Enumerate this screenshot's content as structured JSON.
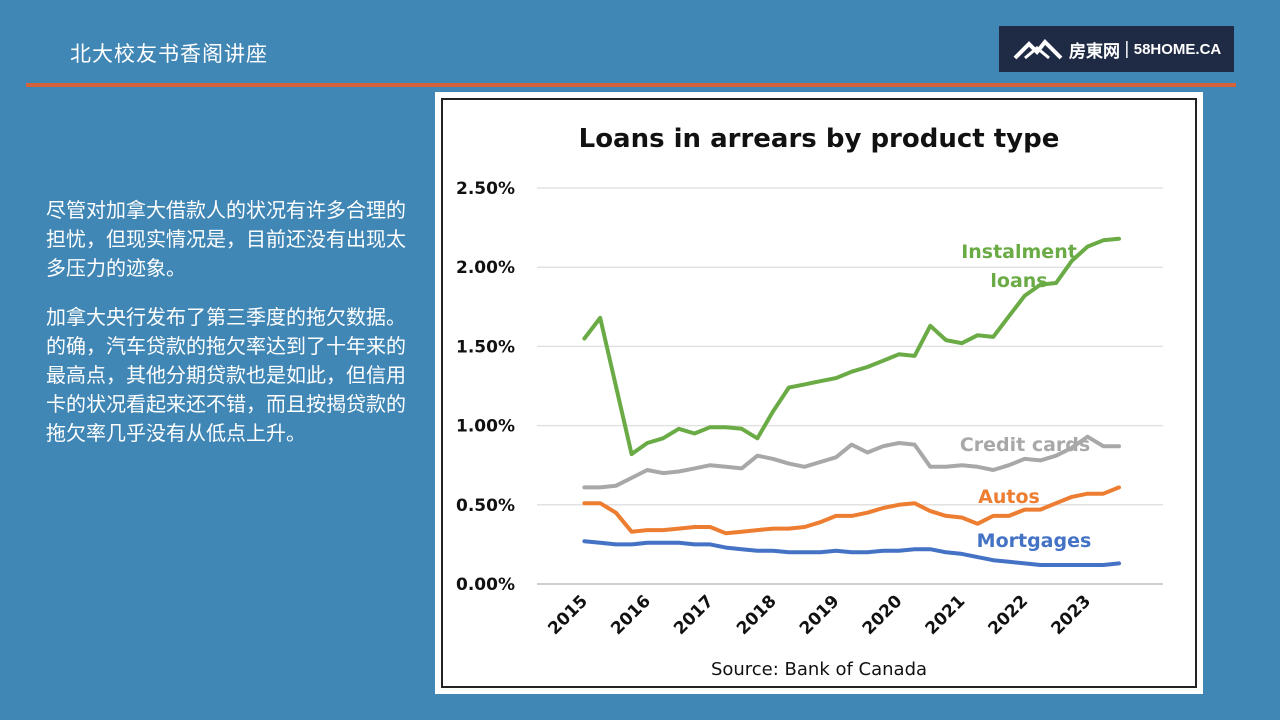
{
  "header": {
    "title": "北大校友书香阁讲座",
    "accent_color": "#d4623b"
  },
  "logo": {
    "cn": "房東网",
    "sep": "|",
    "en": "58HOME.CA",
    "icon": "house-logo-icon"
  },
  "body": {
    "paragraphs": [
      "尽管对加拿大借款人的状况有许多合理的担忧，但现实情况是，目前还没有出现太多压力的迹象。",
      "加拿大央行发布了第三季度的拖欠数据。的确，汽车贷款的拖欠率达到了十年来的最高点，其他分期贷款也是如此，但信用卡的状况看起来还不错，而且按揭贷款的拖欠率几乎没有从低点上升。"
    ]
  },
  "chart_data": {
    "type": "line",
    "title": "Loans in arrears by product type",
    "source": "Source: Bank of Canada",
    "xlabel": "",
    "ylabel": "",
    "x": [
      2015.0,
      2015.25,
      2015.5,
      2015.75,
      2016.0,
      2016.25,
      2016.5,
      2016.75,
      2017.0,
      2017.25,
      2017.5,
      2017.75,
      2018.0,
      2018.25,
      2018.5,
      2018.75,
      2019.0,
      2019.25,
      2019.5,
      2019.75,
      2020.0,
      2020.25,
      2020.5,
      2020.75,
      2021.0,
      2021.25,
      2021.5,
      2021.75,
      2022.0,
      2022.25,
      2022.5,
      2022.75,
      2023.0,
      2023.25,
      2023.5
    ],
    "x_ticks": [
      "2015",
      "2016",
      "2017",
      "2018",
      "2019",
      "2020",
      "2021",
      "2022",
      "2023"
    ],
    "y_ticks": [
      "0.00%",
      "0.50%",
      "1.00%",
      "1.50%",
      "2.00%",
      "2.50%"
    ],
    "ylim": [
      0,
      2.5
    ],
    "grid": true,
    "series": [
      {
        "name": "Instalment loans",
        "label_lines": [
          "Instalment",
          "loans"
        ],
        "color": "#6aab46",
        "values": [
          1.55,
          1.68,
          1.25,
          0.82,
          0.89,
          0.92,
          0.98,
          0.95,
          0.99,
          0.99,
          0.98,
          0.92,
          1.09,
          1.24,
          1.26,
          1.28,
          1.3,
          1.34,
          1.37,
          1.41,
          1.45,
          1.44,
          1.63,
          1.54,
          1.52,
          1.57,
          1.56,
          1.69,
          1.82,
          1.89,
          1.9,
          2.04,
          2.13,
          2.17,
          2.18
        ]
      },
      {
        "name": "Credit cards",
        "label_lines": [
          "Credit cards"
        ],
        "color": "#a8a8a8",
        "values": [
          0.61,
          0.61,
          0.62,
          0.67,
          0.72,
          0.7,
          0.71,
          0.73,
          0.75,
          0.74,
          0.73,
          0.81,
          0.79,
          0.76,
          0.74,
          0.77,
          0.8,
          0.88,
          0.83,
          0.87,
          0.89,
          0.88,
          0.74,
          0.74,
          0.75,
          0.74,
          0.72,
          0.75,
          0.79,
          0.78,
          0.81,
          0.86,
          0.93,
          0.87,
          0.87
        ]
      },
      {
        "name": "Autos",
        "label_lines": [
          "Autos"
        ],
        "color": "#ed7d31",
        "values": [
          0.51,
          0.51,
          0.45,
          0.33,
          0.34,
          0.34,
          0.35,
          0.36,
          0.36,
          0.32,
          0.33,
          0.34,
          0.35,
          0.35,
          0.36,
          0.39,
          0.43,
          0.43,
          0.45,
          0.48,
          0.5,
          0.51,
          0.46,
          0.43,
          0.42,
          0.38,
          0.43,
          0.43,
          0.47,
          0.47,
          0.51,
          0.55,
          0.57,
          0.57,
          0.61
        ]
      },
      {
        "name": "Mortgages",
        "label_lines": [
          "Mortgages"
        ],
        "color": "#4472c4",
        "values": [
          0.27,
          0.26,
          0.25,
          0.25,
          0.26,
          0.26,
          0.26,
          0.25,
          0.25,
          0.23,
          0.22,
          0.21,
          0.21,
          0.2,
          0.2,
          0.2,
          0.21,
          0.2,
          0.2,
          0.21,
          0.21,
          0.22,
          0.22,
          0.2,
          0.19,
          0.17,
          0.15,
          0.14,
          0.13,
          0.12,
          0.12,
          0.12,
          0.12,
          0.12,
          0.13
        ]
      }
    ]
  }
}
